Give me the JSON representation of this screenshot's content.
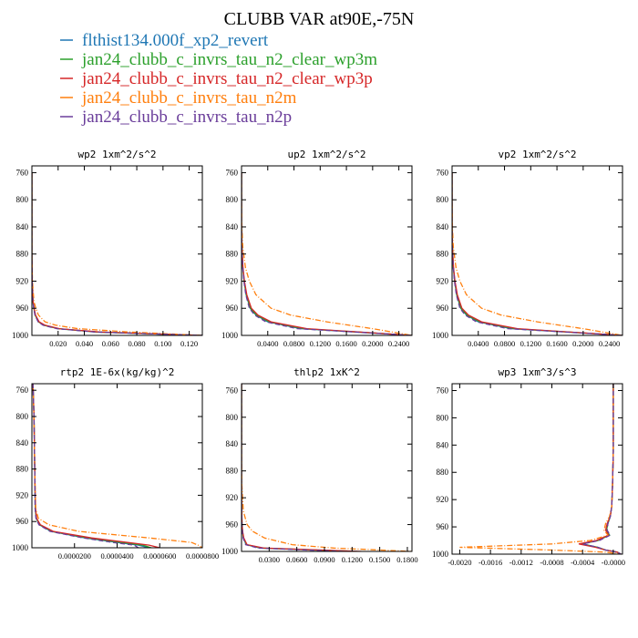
{
  "title": "CLUBB VAR at90E,-75N",
  "legend": [
    {
      "label": "flthist134.000f_xp2_revert",
      "color": "#1f77b4",
      "dash": ""
    },
    {
      "label": "jan24_clubb_c_invrs_tau_n2_clear_wp3m",
      "color": "#2ca02c",
      "dash": ""
    },
    {
      "label": "jan24_clubb_c_invrs_tau_n2_clear_wp3p",
      "color": "#d62728",
      "dash": ""
    },
    {
      "label": "jan24_clubb_c_invrs_tau_n2m",
      "color": "#ff7f0e",
      "dash": "6,2,1,2"
    },
    {
      "label": "jan24_clubb_c_invrs_tau_n2p",
      "color": "#6a3d9a",
      "dash": "5,3"
    }
  ],
  "chart_data": [
    {
      "type": "line",
      "title": "wp2   1xm^2/s^2",
      "xlim": [
        0,
        0.13
      ],
      "ylim": [
        1000,
        750
      ],
      "y_inverted": true,
      "xticks": [
        0.02,
        0.04,
        0.06,
        0.08,
        0.1,
        0.12
      ],
      "xtick_labels": [
        "0.020",
        "0.040",
        "0.060",
        "0.080",
        "0.100",
        "0.120"
      ],
      "yticks": [
        760,
        800,
        840,
        880,
        920,
        960,
        1000
      ],
      "y": [
        760,
        800,
        840,
        880,
        920,
        950,
        960,
        970,
        980,
        985,
        990,
        995,
        1000
      ],
      "series": [
        {
          "legend_index": 0,
          "x": [
            0,
            0,
            0,
            0,
            0.0002,
            0.0008,
            0.0015,
            0.0025,
            0.005,
            0.009,
            0.02,
            0.05,
            0.13
          ]
        },
        {
          "legend_index": 1,
          "x": [
            0,
            0,
            0,
            0,
            0.0002,
            0.0008,
            0.0015,
            0.0025,
            0.005,
            0.009,
            0.02,
            0.05,
            0.13
          ]
        },
        {
          "legend_index": 2,
          "x": [
            0,
            0,
            0,
            0,
            0.0002,
            0.0009,
            0.0017,
            0.0028,
            0.0055,
            0.01,
            0.021,
            0.052,
            0.13
          ]
        },
        {
          "legend_index": 3,
          "x": [
            0,
            0,
            0,
            0,
            0.0004,
            0.0015,
            0.003,
            0.005,
            0.01,
            0.018,
            0.035,
            0.075,
            0.13
          ]
        },
        {
          "legend_index": 4,
          "x": [
            0,
            0,
            0,
            0,
            0.0002,
            0.0007,
            0.0014,
            0.0023,
            0.0047,
            0.0085,
            0.019,
            0.048,
            0.13
          ]
        }
      ]
    },
    {
      "type": "line",
      "title": "up2   1xm^2/s^2",
      "xlim": [
        0,
        0.26
      ],
      "ylim": [
        1000,
        750
      ],
      "y_inverted": true,
      "xticks": [
        0.04,
        0.08,
        0.12,
        0.16,
        0.2,
        0.24
      ],
      "xtick_labels": [
        "0.0400",
        "0.0800",
        "0.1200",
        "0.1600",
        "0.2000",
        "0.2400"
      ],
      "yticks": [
        760,
        800,
        840,
        880,
        920,
        960,
        1000
      ],
      "y": [
        760,
        800,
        840,
        870,
        900,
        920,
        940,
        960,
        970,
        980,
        990,
        1000
      ],
      "series": [
        {
          "legend_index": 0,
          "x": [
            0,
            0,
            0,
            0.0005,
            0.002,
            0.004,
            0.007,
            0.013,
            0.022,
            0.04,
            0.09,
            0.26
          ]
        },
        {
          "legend_index": 1,
          "x": [
            0,
            0,
            0,
            0.0005,
            0.002,
            0.004,
            0.0072,
            0.0135,
            0.023,
            0.042,
            0.095,
            0.26
          ]
        },
        {
          "legend_index": 2,
          "x": [
            0,
            0,
            0,
            0.0005,
            0.0022,
            0.0045,
            0.008,
            0.015,
            0.025,
            0.045,
            0.1,
            0.26
          ]
        },
        {
          "legend_index": 3,
          "x": [
            0,
            0,
            0.0005,
            0.002,
            0.006,
            0.012,
            0.022,
            0.045,
            0.075,
            0.13,
            0.2,
            0.26
          ]
        },
        {
          "legend_index": 4,
          "x": [
            0,
            0,
            0,
            0.0004,
            0.0018,
            0.0036,
            0.0065,
            0.012,
            0.02,
            0.037,
            0.085,
            0.26
          ]
        }
      ]
    },
    {
      "type": "line",
      "title": "vp2   1xm^2/s^2",
      "xlim": [
        0,
        0.26
      ],
      "ylim": [
        1000,
        750
      ],
      "y_inverted": true,
      "xticks": [
        0.04,
        0.08,
        0.12,
        0.16,
        0.2,
        0.24
      ],
      "xtick_labels": [
        "0.0400",
        "0.0800",
        "0.1200",
        "0.1600",
        "0.2000",
        "0.2400"
      ],
      "yticks": [
        760,
        800,
        840,
        880,
        920,
        960,
        1000
      ],
      "y": [
        760,
        800,
        840,
        870,
        900,
        920,
        940,
        960,
        970,
        980,
        990,
        1000
      ],
      "series": [
        {
          "legend_index": 0,
          "x": [
            0,
            0,
            0,
            0.0005,
            0.002,
            0.004,
            0.007,
            0.013,
            0.022,
            0.04,
            0.09,
            0.26
          ]
        },
        {
          "legend_index": 1,
          "x": [
            0,
            0,
            0,
            0.0005,
            0.002,
            0.004,
            0.0072,
            0.0135,
            0.023,
            0.042,
            0.095,
            0.26
          ]
        },
        {
          "legend_index": 2,
          "x": [
            0,
            0,
            0,
            0.0005,
            0.0022,
            0.0045,
            0.008,
            0.015,
            0.025,
            0.045,
            0.1,
            0.26
          ]
        },
        {
          "legend_index": 3,
          "x": [
            0,
            0,
            0.0005,
            0.002,
            0.006,
            0.012,
            0.022,
            0.045,
            0.075,
            0.13,
            0.2,
            0.26
          ]
        },
        {
          "legend_index": 4,
          "x": [
            0,
            0,
            0,
            0.0004,
            0.0018,
            0.0036,
            0.0065,
            0.012,
            0.02,
            0.037,
            0.085,
            0.26
          ]
        }
      ]
    },
    {
      "type": "line",
      "title": "rtp2   1E-6x(kg/kg)^2",
      "xlim": [
        0,
        8e-05
      ],
      "ylim": [
        1000,
        750
      ],
      "y_inverted": true,
      "xticks": [
        2e-05,
        4e-05,
        6e-05,
        8e-05
      ],
      "xtick_labels": [
        "0.0000200",
        "0.0000400",
        "0.0000600",
        "0.0000800"
      ],
      "yticks": [
        760,
        800,
        840,
        880,
        920,
        960,
        1000
      ],
      "y": [
        750,
        800,
        850,
        900,
        940,
        955,
        965,
        975,
        985,
        992,
        996,
        1000
      ],
      "series": [
        {
          "legend_index": 0,
          "x": [
            5e-07,
            1e-06,
            1.2e-06,
            1.4e-06,
            1.6e-06,
            2e-06,
            3.5e-06,
            9e-06,
            2.5e-05,
            4e-05,
            5e-05,
            5.5e-05
          ]
        },
        {
          "legend_index": 1,
          "x": [
            5e-07,
            1e-06,
            1.2e-06,
            1.4e-06,
            1.6e-06,
            2.1e-06,
            3.7e-06,
            9.5e-06,
            2.6e-05,
            4.2e-05,
            5.2e-05,
            5.6e-05
          ]
        },
        {
          "legend_index": 2,
          "x": [
            5e-07,
            1e-06,
            1.2e-06,
            1.4e-06,
            1.7e-06,
            2.2e-06,
            4e-06,
            1e-05,
            2.8e-05,
            4.5e-05,
            5.5e-05,
            6e-05
          ]
        },
        {
          "legend_index": 3,
          "x": [
            5e-07,
            1e-06,
            1.2e-06,
            1.5e-06,
            1.8e-06,
            3e-06,
            8e-06,
            2.2e-05,
            5.5e-05,
            7.5e-05,
            7.8e-05,
            8e-05
          ]
        },
        {
          "legend_index": 4,
          "x": [
            5e-07,
            1e-06,
            1.2e-06,
            1.4e-06,
            1.5e-06,
            1.9e-06,
            3.3e-06,
            8.5e-06,
            2.4e-05,
            3.8e-05,
            4.8e-05,
            5e-05
          ]
        }
      ]
    },
    {
      "type": "line",
      "title": "thlp2   1xK^2",
      "xlim": [
        0,
        0.185
      ],
      "ylim": [
        1000,
        750
      ],
      "y_inverted": true,
      "xticks": [
        0.03,
        0.06,
        0.09,
        0.12,
        0.15,
        0.18
      ],
      "xtick_labels": [
        "0.0300",
        "0.0600",
        "0.0900",
        "0.1200",
        "0.1500",
        "0.1800"
      ],
      "yticks": [
        760,
        800,
        840,
        880,
        920,
        960,
        1000
      ],
      "y": [
        750,
        800,
        850,
        900,
        940,
        960,
        970,
        980,
        990,
        995,
        1000
      ],
      "series": [
        {
          "legend_index": 0,
          "x": [
            0,
            0,
            0,
            0,
            0.0002,
            0.0005,
            0.001,
            0.002,
            0.005,
            0.02,
            0.12
          ]
        },
        {
          "legend_index": 1,
          "x": [
            0,
            0,
            0,
            0,
            0.0002,
            0.0005,
            0.0011,
            0.0022,
            0.0055,
            0.022,
            0.125
          ]
        },
        {
          "legend_index": 2,
          "x": [
            0,
            0,
            0,
            0,
            0.0002,
            0.0006,
            0.0012,
            0.0025,
            0.006,
            0.024,
            0.13
          ]
        },
        {
          "legend_index": 3,
          "x": [
            0,
            0,
            0,
            0.0003,
            0.002,
            0.006,
            0.012,
            0.025,
            0.055,
            0.1,
            0.185
          ]
        },
        {
          "legend_index": 4,
          "x": [
            0,
            0,
            0,
            0,
            0.0002,
            0.0004,
            0.0009,
            0.0018,
            0.0045,
            0.018,
            0.11
          ]
        }
      ]
    },
    {
      "type": "line",
      "title": "wp3   1xm^3/s^3",
      "xlim": [
        -0.0021,
        0.00012
      ],
      "ylim": [
        1000,
        750
      ],
      "y_inverted": true,
      "xticks": [
        -0.002,
        -0.0016,
        -0.0012,
        -0.0008,
        -0.0004,
        0
      ],
      "xtick_labels": [
        "-0.0020",
        "-0.0016",
        "-0.0012",
        "-0.0008",
        "-0.0004",
        "-0.0000"
      ],
      "yticks": [
        760,
        800,
        840,
        880,
        920,
        960,
        1000
      ],
      "y": [
        750,
        800,
        850,
        900,
        930,
        945,
        955,
        965,
        972,
        980,
        985,
        990,
        994,
        997,
        1000
      ],
      "series": [
        {
          "legend_index": 0,
          "x": [
            0,
            0,
            0,
            -1e-05,
            -2e-05,
            -4e-05,
            -7e-05,
            -9e-05,
            -5e-05,
            -0.0002,
            -0.0004,
            -0.0002,
            -0.0001,
            5e-05,
            0.0001
          ]
        },
        {
          "legend_index": 1,
          "x": [
            0,
            0,
            0,
            -1e-05,
            -2e-05,
            -4e-05,
            -7e-05,
            -9e-05,
            -5e-05,
            -0.0002,
            -0.00042,
            -0.00021,
            -0.0001,
            5e-05,
            0.0001
          ]
        },
        {
          "legend_index": 2,
          "x": [
            0,
            0,
            0,
            -1e-05,
            -2e-05,
            -4e-05,
            -8e-05,
            -0.0001,
            -6e-05,
            -0.00022,
            -0.00045,
            -0.00023,
            -0.0001,
            5e-05,
            0.0001
          ]
        },
        {
          "legend_index": 3,
          "x": [
            0,
            0,
            0,
            -1e-05,
            -2e-05,
            -5e-05,
            -0.0001,
            -0.00012,
            -7e-05,
            -0.0003,
            -0.0008,
            -0.002,
            -0.0008,
            -0.0001,
            0.0001
          ]
        },
        {
          "legend_index": 4,
          "x": [
            0,
            0,
            0,
            -1e-05,
            -2e-05,
            -4e-05,
            -7e-05,
            -8e-05,
            -4e-05,
            -0.00018,
            -0.0004,
            -0.0002,
            -0.0001,
            5e-05,
            0.0001
          ]
        }
      ]
    }
  ]
}
